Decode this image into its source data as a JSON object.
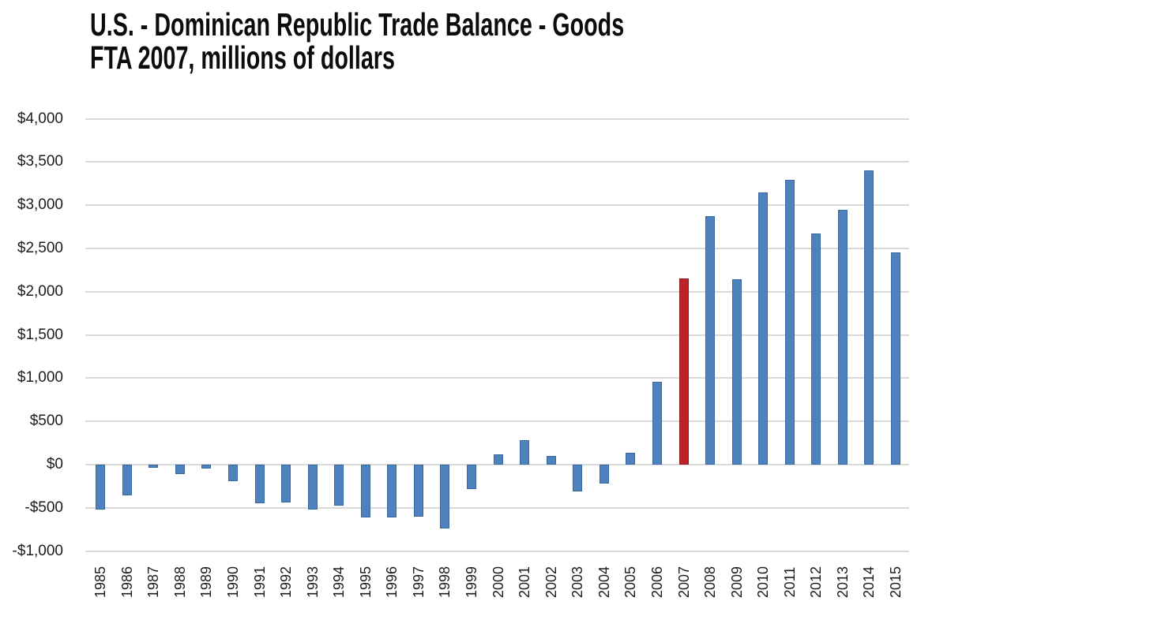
{
  "title": {
    "line1": "U.S. - Dominican Republic Trade Balance - Goods",
    "line2": "FTA 2007, millions of dollars"
  },
  "chart_data": {
    "type": "bar",
    "title": "U.S. - Dominican Republic Trade Balance - Goods FTA 2007, millions of dollars",
    "xlabel": "",
    "ylabel": "",
    "categories": [
      "1985",
      "1986",
      "1987",
      "1988",
      "1989",
      "1990",
      "1991",
      "1992",
      "1993",
      "1994",
      "1995",
      "1996",
      "1997",
      "1998",
      "1999",
      "2000",
      "2001",
      "2002",
      "2003",
      "2004",
      "2005",
      "2006",
      "2007",
      "2008",
      "2009",
      "2010",
      "2011",
      "2012",
      "2013",
      "2014",
      "2015"
    ],
    "values": [
      -520,
      -360,
      -40,
      -110,
      -45,
      -190,
      -450,
      -440,
      -520,
      -470,
      -610,
      -610,
      -600,
      -740,
      -280,
      120,
      280,
      100,
      -310,
      -220,
      140,
      960,
      2150,
      2870,
      2140,
      3150,
      3290,
      2670,
      2950,
      3400,
      2450
    ],
    "highlight_category": "2007",
    "yticks": [
      {
        "value": 4000,
        "label": "$4,000"
      },
      {
        "value": 3500,
        "label": "$3,500"
      },
      {
        "value": 3000,
        "label": "$3,000"
      },
      {
        "value": 2500,
        "label": "$2,500"
      },
      {
        "value": 2000,
        "label": "$2,000"
      },
      {
        "value": 1500,
        "label": "$1,500"
      },
      {
        "value": 1000,
        "label": "$1,000"
      },
      {
        "value": 500,
        "label": "$500"
      },
      {
        "value": 0,
        "label": "$0"
      },
      {
        "value": -500,
        "label": "-$500"
      },
      {
        "value": -1000,
        "label": "-$1,000"
      }
    ],
    "ylim": [
      -1000,
      4000
    ],
    "grid": "horizontal",
    "legend": "none",
    "colors": {
      "bar_fill": "#4f81bd",
      "bar_border": "#39679f",
      "highlight_fill": "#be2126",
      "highlight_border": "#8f191d",
      "gridline": "#d9d9d9",
      "tick_text": "#1c1c1c",
      "title_text": "#0c0c0c"
    }
  }
}
